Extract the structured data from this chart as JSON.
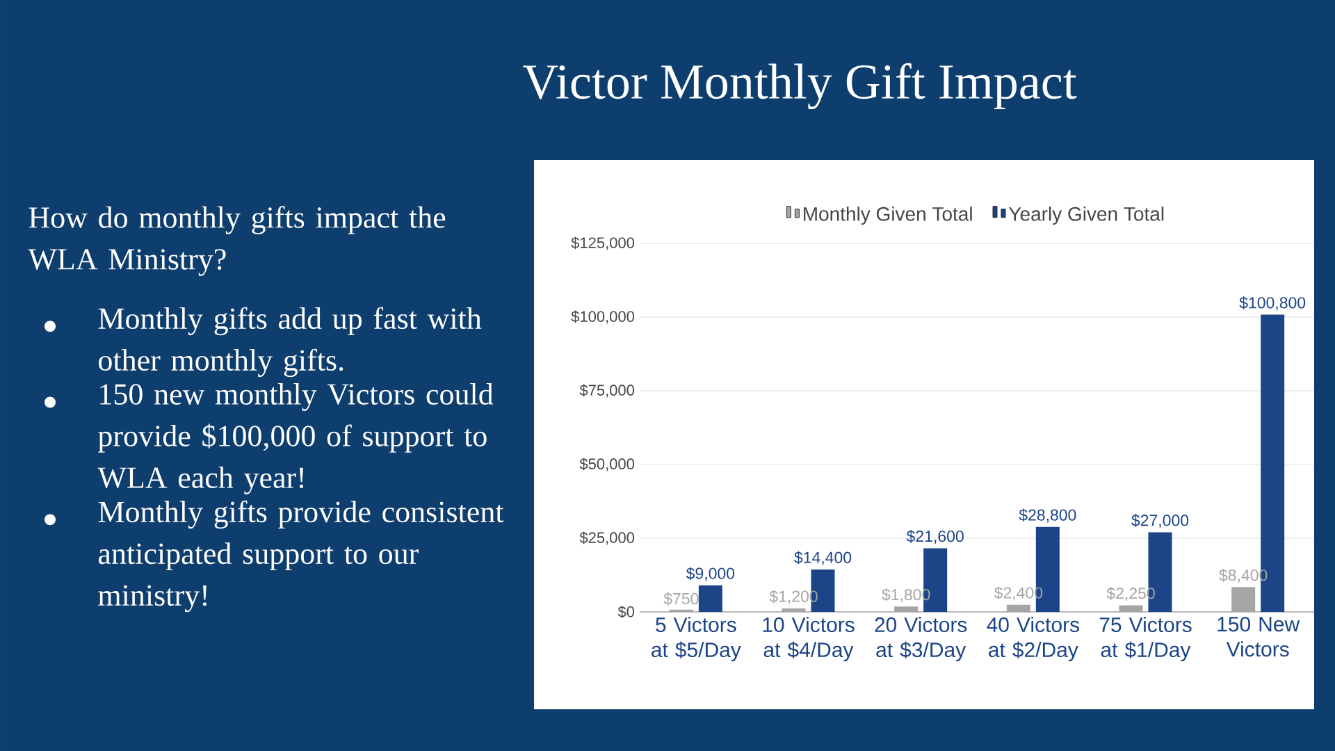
{
  "chart_data": {
    "type": "bar",
    "title": "Victor Monthly Gift Impact",
    "annotations": [
      "How do monthly gifts impact the WLA Ministry?",
      "Monthly gifts add up fast with other monthly gifts.",
      "150 new monthly Victors could provide $100,000 of support to WLA each year!",
      "Monthly gifts provide consistent anticipated support to our ministry!"
    ],
    "categories": [
      "5 Victors at $5/Day",
      "10 Victors at $4/Day",
      "20 Victors at $3/Day",
      "40 Victors at $2/Day",
      "75 Victors at $1/Day",
      "150 New Victors"
    ],
    "series": [
      {
        "name": "Monthly Given Total",
        "color": "#a5a5a5",
        "values": [
          750,
          1200,
          1800,
          2400,
          2250,
          8400
        ],
        "value_labels": [
          "$750",
          "$1,200",
          "$1,800",
          "$2,400",
          "$2,250",
          "$8,400"
        ]
      },
      {
        "name": "Yearly Given Total",
        "color": "#1c4587",
        "values": [
          9000,
          14400,
          21600,
          28800,
          27000,
          100800
        ],
        "value_labels": [
          "$9,000",
          "$14,400",
          "$21,600",
          "$28,800",
          "$27,000",
          "$100,800"
        ]
      }
    ],
    "ylim": [
      0,
      125000
    ],
    "yticks": [
      {
        "value": 0,
        "label": "$0"
      },
      {
        "value": 25000,
        "label": "$25,000"
      },
      {
        "value": 50000,
        "label": "$50,000"
      },
      {
        "value": 75000,
        "label": "$75,000"
      },
      {
        "value": 100000,
        "label": "$100,000"
      },
      {
        "value": 125000,
        "label": "$125,000"
      }
    ],
    "grid": "y",
    "legend": "top"
  }
}
